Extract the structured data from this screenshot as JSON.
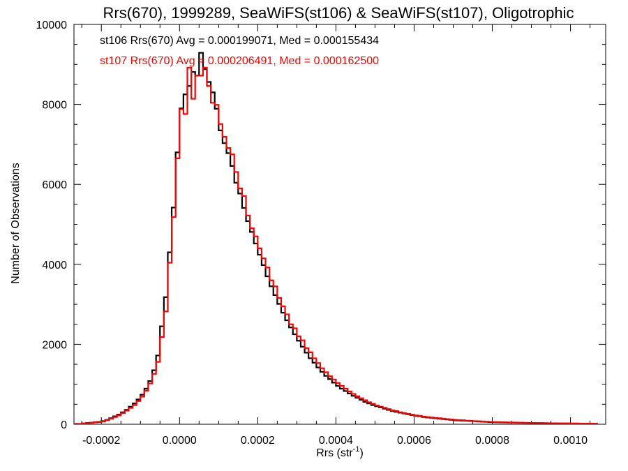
{
  "chart_data": {
    "type": "histogram-step",
    "title": "Rrs(670), 1999289, SeaWiFS(st106) & SeaWiFS(st107), Oligotrophic",
    "xlabel_main": "Rrs (str",
    "xlabel_sup": "-1",
    "xlabel_close": ")",
    "ylabel": "Number of Observations",
    "xlim": [
      -0.00027,
      0.00109
    ],
    "ylim": [
      0,
      10000
    ],
    "grid": false,
    "xticks": [
      -0.0002,
      0.0,
      0.0002,
      0.0004,
      0.0006,
      0.0008,
      0.001
    ],
    "xtick_labels": [
      "-0.0002",
      "0.0000",
      "0.0002",
      "0.0004",
      "0.0006",
      "0.0008",
      "0.0010"
    ],
    "xminor_step": 5e-05,
    "yticks": [
      0,
      2000,
      4000,
      6000,
      8000,
      10000
    ],
    "ytick_labels": [
      "0",
      "2000",
      "4000",
      "6000",
      "8000",
      "10000"
    ],
    "yminor_step": 500,
    "annotations": [
      {
        "text": "st106 Rrs(670) Avg = 0.000199071, Med = 0.000155434",
        "color": "#000000"
      },
      {
        "text": "st107 Rrs(670) Avg = 0.000206491, Med = 0.000162500",
        "color": "#ff0000"
      }
    ],
    "series": [
      {
        "name": "st106",
        "color": "#000000",
        "bin_width": 1e-05,
        "x_start": -0.00027,
        "values": [
          10,
          10,
          20,
          30,
          40,
          50,
          60,
          80,
          110,
          150,
          200,
          240,
          300,
          360,
          440,
          520,
          620,
          740,
          890,
          1080,
          1350,
          1720,
          2450,
          3180,
          4300,
          5420,
          6800,
          7900,
          8250,
          8460,
          8810,
          8720,
          9290,
          8880,
          8560,
          8300,
          7890,
          7350,
          7030,
          6780,
          6460,
          6040,
          5770,
          5410,
          5080,
          4810,
          4520,
          4240,
          3980,
          3700,
          3450,
          3230,
          3010,
          2790,
          2600,
          2420,
          2250,
          2090,
          1940,
          1790,
          1650,
          1540,
          1420,
          1310,
          1210,
          1130,
          1040,
          960,
          890,
          830,
          770,
          710,
          660,
          610,
          560,
          520,
          480,
          450,
          420,
          390,
          360,
          330,
          310,
          290,
          270,
          250,
          230,
          210,
          200,
          180,
          170,
          160,
          150,
          140,
          130,
          120,
          110,
          100,
          95,
          90,
          85,
          80,
          75,
          70,
          65,
          60,
          55,
          50,
          48,
          46,
          44,
          42,
          40,
          38,
          36,
          34,
          32,
          30,
          28,
          26,
          25,
          24,
          23,
          22,
          21,
          20,
          19,
          18,
          17,
          16,
          15,
          14,
          13,
          12
        ]
      },
      {
        "name": "st107",
        "color": "#ff0000",
        "bin_width": 1e-05,
        "x_start": -0.00027,
        "values": [
          10,
          10,
          15,
          25,
          35,
          45,
          55,
          70,
          100,
          140,
          180,
          220,
          280,
          340,
          410,
          480,
          580,
          690,
          840,
          1020,
          1260,
          1560,
          2180,
          2820,
          4040,
          5180,
          6650,
          7880,
          7760,
          8920,
          8140,
          8720,
          8720,
          8920,
          8460,
          8040,
          7990,
          7510,
          7190,
          6910,
          6750,
          6310,
          5900,
          5710,
          5220,
          4900,
          4700,
          4400,
          4150,
          3920,
          3600,
          3450,
          3160,
          2950,
          2750,
          2500,
          2400,
          2200,
          2100,
          1900,
          1800,
          1650,
          1530,
          1400,
          1300,
          1200,
          1120,
          1030,
          960,
          890,
          820,
          760,
          700,
          650,
          600,
          550,
          510,
          470,
          440,
          410,
          380,
          350,
          330,
          300,
          280,
          260,
          240,
          220,
          210,
          190,
          180,
          170,
          160,
          150,
          140,
          130,
          120,
          110,
          105,
          100,
          90,
          85,
          80,
          75,
          70,
          65,
          60,
          55,
          52,
          50,
          48,
          46,
          44,
          42,
          40,
          38,
          36,
          34,
          32,
          30,
          28,
          26,
          25,
          24,
          23,
          22,
          21,
          20,
          19,
          18,
          17,
          16,
          15,
          14
        ]
      }
    ]
  }
}
